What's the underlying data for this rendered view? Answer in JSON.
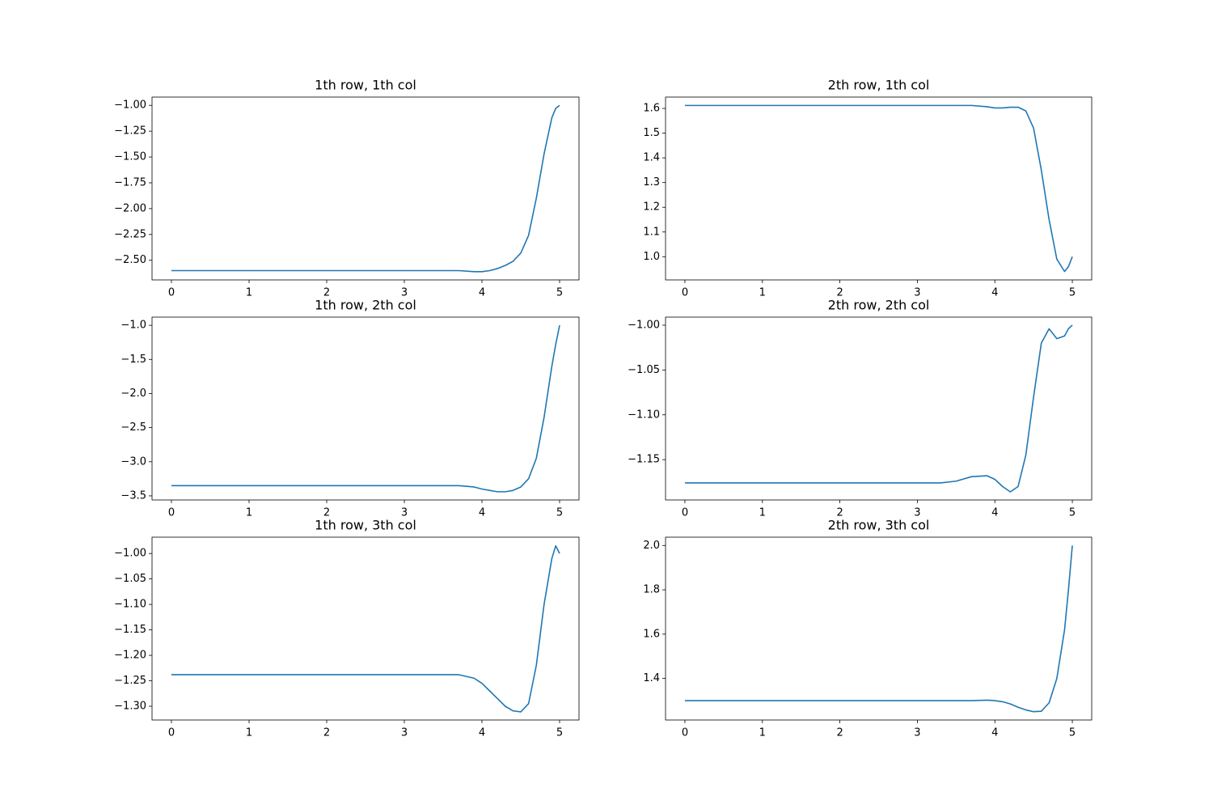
{
  "chart_data": [
    {
      "type": "line",
      "title": "1th row, 1th col",
      "color": "#1f77b4",
      "x": [
        0,
        0.5,
        1,
        1.5,
        2,
        2.5,
        3,
        3.3,
        3.5,
        3.7,
        3.9,
        4.0,
        4.1,
        4.2,
        4.3,
        4.4,
        4.5,
        4.6,
        4.7,
        4.8,
        4.9,
        4.95,
        5.0
      ],
      "values": [
        -2.6,
        -2.6,
        -2.6,
        -2.6,
        -2.6,
        -2.6,
        -2.6,
        -2.6,
        -2.6,
        -2.6,
        -2.61,
        -2.61,
        -2.6,
        -2.58,
        -2.55,
        -2.51,
        -2.43,
        -2.26,
        -1.9,
        -1.47,
        -1.12,
        -1.03,
        -1.0
      ],
      "xlim": [
        -0.25,
        5.25
      ],
      "xticks": [
        0,
        1,
        2,
        3,
        4,
        5
      ],
      "ylim": [
        -2.69,
        -0.92
      ],
      "yticks": [
        {
          "value": -2.5,
          "label": "−2.50"
        },
        {
          "value": -2.25,
          "label": "−2.25"
        },
        {
          "value": -2.0,
          "label": "−2.00"
        },
        {
          "value": -1.75,
          "label": "−1.75"
        },
        {
          "value": -1.5,
          "label": "−1.50"
        },
        {
          "value": -1.25,
          "label": "−1.25"
        },
        {
          "value": -1.0,
          "label": "−1.00"
        }
      ]
    },
    {
      "type": "line",
      "title": "1th row, 2th col",
      "color": "#1f77b4",
      "x": [
        0,
        0.5,
        1,
        1.5,
        2,
        2.5,
        3,
        3.3,
        3.5,
        3.7,
        3.9,
        4.0,
        4.1,
        4.2,
        4.3,
        4.4,
        4.5,
        4.6,
        4.7,
        4.8,
        4.9,
        4.95,
        5.0
      ],
      "values": [
        -3.35,
        -3.35,
        -3.35,
        -3.35,
        -3.35,
        -3.35,
        -3.35,
        -3.35,
        -3.35,
        -3.35,
        -3.37,
        -3.4,
        -3.42,
        -3.44,
        -3.44,
        -3.42,
        -3.37,
        -3.25,
        -2.95,
        -2.35,
        -1.6,
        -1.28,
        -1.0
      ],
      "xlim": [
        -0.25,
        5.25
      ],
      "xticks": [
        0,
        1,
        2,
        3,
        4,
        5
      ],
      "ylim": [
        -3.56,
        -0.88
      ],
      "yticks": [
        {
          "value": -3.5,
          "label": "−3.5"
        },
        {
          "value": -3.0,
          "label": "−3.0"
        },
        {
          "value": -2.5,
          "label": "−2.5"
        },
        {
          "value": -2.0,
          "label": "−2.0"
        },
        {
          "value": -1.5,
          "label": "−1.5"
        },
        {
          "value": -1.0,
          "label": "−1.0"
        }
      ]
    },
    {
      "type": "line",
      "title": "1th row, 3th col",
      "color": "#1f77b4",
      "x": [
        0,
        0.5,
        1,
        1.5,
        2,
        2.5,
        3,
        3.3,
        3.5,
        3.7,
        3.9,
        4.0,
        4.1,
        4.2,
        4.3,
        4.4,
        4.5,
        4.6,
        4.7,
        4.8,
        4.9,
        4.95,
        5.0
      ],
      "values": [
        -1.238,
        -1.238,
        -1.238,
        -1.238,
        -1.238,
        -1.238,
        -1.238,
        -1.238,
        -1.238,
        -1.238,
        -1.245,
        -1.255,
        -1.27,
        -1.285,
        -1.3,
        -1.309,
        -1.311,
        -1.295,
        -1.22,
        -1.1,
        -1.01,
        -0.985,
        -1.0
      ],
      "xlim": [
        -0.25,
        5.25
      ],
      "xticks": [
        0,
        1,
        2,
        3,
        4,
        5
      ],
      "ylim": [
        -1.327,
        -0.968
      ],
      "yticks": [
        {
          "value": -1.3,
          "label": "−1.30"
        },
        {
          "value": -1.25,
          "label": "−1.25"
        },
        {
          "value": -1.2,
          "label": "−1.20"
        },
        {
          "value": -1.15,
          "label": "−1.15"
        },
        {
          "value": -1.1,
          "label": "−1.10"
        },
        {
          "value": -1.05,
          "label": "−1.05"
        },
        {
          "value": -1.0,
          "label": "−1.00"
        }
      ]
    },
    {
      "type": "line",
      "title": "2th row, 1th col",
      "color": "#1f77b4",
      "x": [
        0,
        0.5,
        1,
        1.5,
        2,
        2.5,
        3,
        3.3,
        3.5,
        3.7,
        3.9,
        4.0,
        4.1,
        4.2,
        4.3,
        4.4,
        4.5,
        4.6,
        4.7,
        4.8,
        4.9,
        4.95,
        5.0
      ],
      "values": [
        1.612,
        1.612,
        1.612,
        1.612,
        1.612,
        1.612,
        1.612,
        1.612,
        1.612,
        1.612,
        1.607,
        1.602,
        1.602,
        1.605,
        1.605,
        1.59,
        1.52,
        1.35,
        1.15,
        0.99,
        0.94,
        0.96,
        1.0
      ],
      "xlim": [
        -0.25,
        5.25
      ],
      "xticks": [
        0,
        1,
        2,
        3,
        4,
        5
      ],
      "ylim": [
        0.906,
        1.646
      ],
      "yticks": [
        {
          "value": 1.0,
          "label": "1.0"
        },
        1.1,
        1.2,
        1.3,
        1.4,
        1.5,
        1.6
      ]
    },
    {
      "type": "line",
      "title": "2th row, 2th col",
      "color": "#1f77b4",
      "x": [
        0,
        0.5,
        1,
        1.5,
        2,
        2.5,
        3,
        3.3,
        3.5,
        3.7,
        3.9,
        4.0,
        4.1,
        4.2,
        4.3,
        4.4,
        4.5,
        4.6,
        4.7,
        4.8,
        4.9,
        4.95,
        5.0
      ],
      "values": [
        -1.176,
        -1.176,
        -1.176,
        -1.176,
        -1.176,
        -1.176,
        -1.176,
        -1.176,
        -1.174,
        -1.169,
        -1.168,
        -1.172,
        -1.18,
        -1.186,
        -1.18,
        -1.145,
        -1.08,
        -1.02,
        -1.004,
        -1.015,
        -1.012,
        -1.004,
        -1.0
      ],
      "xlim": [
        -0.25,
        5.25
      ],
      "xticks": [
        0,
        1,
        2,
        3,
        4,
        5
      ],
      "ylim": [
        -1.195,
        -0.991
      ],
      "yticks": [
        {
          "value": -1.15,
          "label": "−1.15"
        },
        {
          "value": -1.1,
          "label": "−1.10"
        },
        {
          "value": -1.05,
          "label": "−1.05"
        },
        {
          "value": -1.0,
          "label": "−1.00"
        }
      ]
    },
    {
      "type": "line",
      "title": "2th row, 3th col",
      "color": "#1f77b4",
      "x": [
        0,
        0.5,
        1,
        1.5,
        2,
        2.5,
        3,
        3.3,
        3.5,
        3.7,
        3.9,
        4.0,
        4.1,
        4.2,
        4.3,
        4.4,
        4.5,
        4.6,
        4.7,
        4.8,
        4.9,
        4.95,
        5.0
      ],
      "values": [
        1.3,
        1.3,
        1.3,
        1.3,
        1.3,
        1.3,
        1.3,
        1.3,
        1.3,
        1.3,
        1.302,
        1.3,
        1.295,
        1.285,
        1.27,
        1.258,
        1.25,
        1.252,
        1.29,
        1.4,
        1.62,
        1.8,
        2.0
      ],
      "xlim": [
        -0.25,
        5.25
      ],
      "xticks": [
        0,
        1,
        2,
        3,
        4,
        5
      ],
      "ylim": [
        1.2125,
        2.0375
      ],
      "yticks": [
        1.4,
        1.6,
        1.8,
        {
          "value": 2.0,
          "label": "2.0"
        }
      ]
    }
  ]
}
